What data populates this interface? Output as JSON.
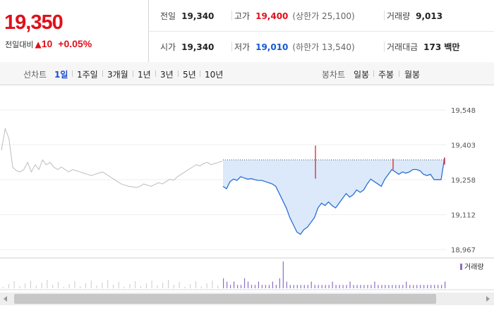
{
  "quote": {
    "price": "19,350",
    "change_label": "전일대비",
    "change_arrow": "▲",
    "change_value": "10",
    "change_percent": "+0.05%"
  },
  "stats": {
    "prev_close": {
      "label": "전일",
      "value": "19,340"
    },
    "high": {
      "label": "고가",
      "value": "19,400",
      "sub": "(상한가 25,100)"
    },
    "volume": {
      "label": "거래량",
      "value": "9,013"
    },
    "open": {
      "label": "시가",
      "value": "19,340"
    },
    "low": {
      "label": "저가",
      "value": "19,010",
      "sub": "(하한가 13,540)"
    },
    "trade_value": {
      "label": "거래대금",
      "value": "173 백만"
    }
  },
  "toolbar": {
    "line_chart_label": "선차트",
    "ranges": [
      {
        "label": "1일",
        "active": true
      },
      {
        "label": "1주일",
        "active": false
      },
      {
        "label": "3개월",
        "active": false
      },
      {
        "label": "1년",
        "active": false
      },
      {
        "label": "3년",
        "active": false
      },
      {
        "label": "5년",
        "active": false
      },
      {
        "label": "10년",
        "active": false
      }
    ],
    "candle_chart_label": "봉차트",
    "candle_periods": [
      {
        "label": "일봉"
      },
      {
        "label": "주봉"
      },
      {
        "label": "월봉"
      }
    ]
  },
  "chart_data": {
    "type": "line",
    "y_ticks": [
      "19,548",
      "19,403",
      "19,258",
      "19,112",
      "18,967"
    ],
    "y_tick_values": [
      19548,
      19403,
      19258,
      19112,
      18967
    ],
    "ylim": [
      18967,
      19548
    ],
    "reference_line": 19340,
    "volume_legend": "거래량",
    "colors": {
      "today_line": "#2a6fd6",
      "today_fill": "#dce9fa",
      "prev_line": "#bdbdbd",
      "volume_bar": "#8a6fc4",
      "spike": "#e0101a"
    },
    "prev_day_series": [
      19380,
      19470,
      19430,
      19310,
      19295,
      19290,
      19300,
      19330,
      19290,
      19320,
      19300,
      19340,
      19320,
      19330,
      19310,
      19300,
      19310,
      19300,
      19290,
      19300,
      19295,
      19290,
      19285,
      19280,
      19275,
      19280,
      19285,
      19290,
      19280,
      19270,
      19260,
      19250,
      19240,
      19235,
      19230,
      19228,
      19225,
      19230,
      19240,
      19235,
      19230,
      19238,
      19245,
      19240,
      19250,
      19260,
      19255,
      19270,
      19280,
      19290,
      19300,
      19310,
      19320,
      19315,
      19325,
      19330,
      19320,
      19325,
      19330,
      19335
    ],
    "today_series": [
      19230,
      19220,
      19250,
      19260,
      19255,
      19270,
      19265,
      19260,
      19262,
      19258,
      19255,
      19255,
      19250,
      19245,
      19240,
      19230,
      19200,
      19170,
      19140,
      19100,
      19070,
      19040,
      19030,
      19050,
      19060,
      19080,
      19100,
      19140,
      19160,
      19150,
      19165,
      19150,
      19140,
      19160,
      19180,
      19200,
      19185,
      19195,
      19215,
      19205,
      19215,
      19240,
      19260,
      19250,
      19240,
      19230,
      19260,
      19280,
      19300,
      19290,
      19280,
      19290,
      19285,
      19290,
      19300,
      19300,
      19295,
      19280,
      19275,
      19280,
      19258,
      19258,
      19258,
      19350
    ],
    "volume": [
      3,
      2,
      1,
      2,
      1,
      1,
      3,
      2,
      1,
      1,
      2,
      1,
      1,
      1,
      2,
      1,
      3,
      8,
      2,
      1,
      1,
      1,
      1,
      1,
      1,
      2,
      1,
      1,
      1,
      1,
      1,
      2,
      1,
      1,
      1,
      1,
      2,
      1,
      1,
      1,
      1,
      1,
      1,
      2,
      1,
      1,
      1,
      1,
      1,
      1,
      1,
      1,
      2,
      1,
      1,
      1,
      1,
      1,
      1,
      1,
      1,
      1,
      1,
      2
    ]
  }
}
